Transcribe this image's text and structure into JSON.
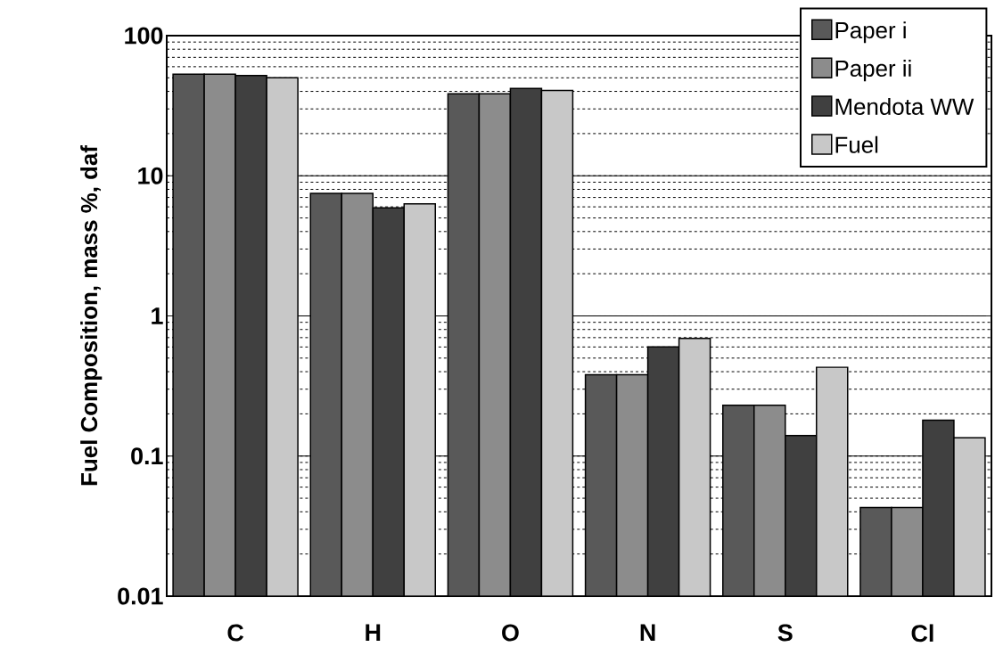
{
  "chart_data": {
    "type": "bar",
    "ylabel": "Fuel Composition, mass %, daf",
    "categories": [
      "C",
      "H",
      "O",
      "N",
      "S",
      "Cl"
    ],
    "series": [
      {
        "name": "Paper i",
        "color": "#595959",
        "values": [
          53,
          7.5,
          38.5,
          0.38,
          0.23,
          0.043
        ]
      },
      {
        "name": "Paper ii",
        "color": "#8c8c8c",
        "values": [
          53,
          7.5,
          38.5,
          0.38,
          0.23,
          0.043
        ]
      },
      {
        "name": "Mendota WW",
        "color": "#404040",
        "values": [
          52,
          5.9,
          42,
          0.6,
          0.14,
          0.18
        ]
      },
      {
        "name": "Fuel",
        "color": "#c8c8c8",
        "values": [
          50,
          6.3,
          40.6,
          0.69,
          0.43,
          0.135
        ]
      }
    ],
    "log": "y",
    "ylim": [
      0.01,
      100
    ],
    "yticks": [
      0.01,
      0.1,
      1,
      10,
      100
    ],
    "grid": "y",
    "legend": "top right"
  }
}
